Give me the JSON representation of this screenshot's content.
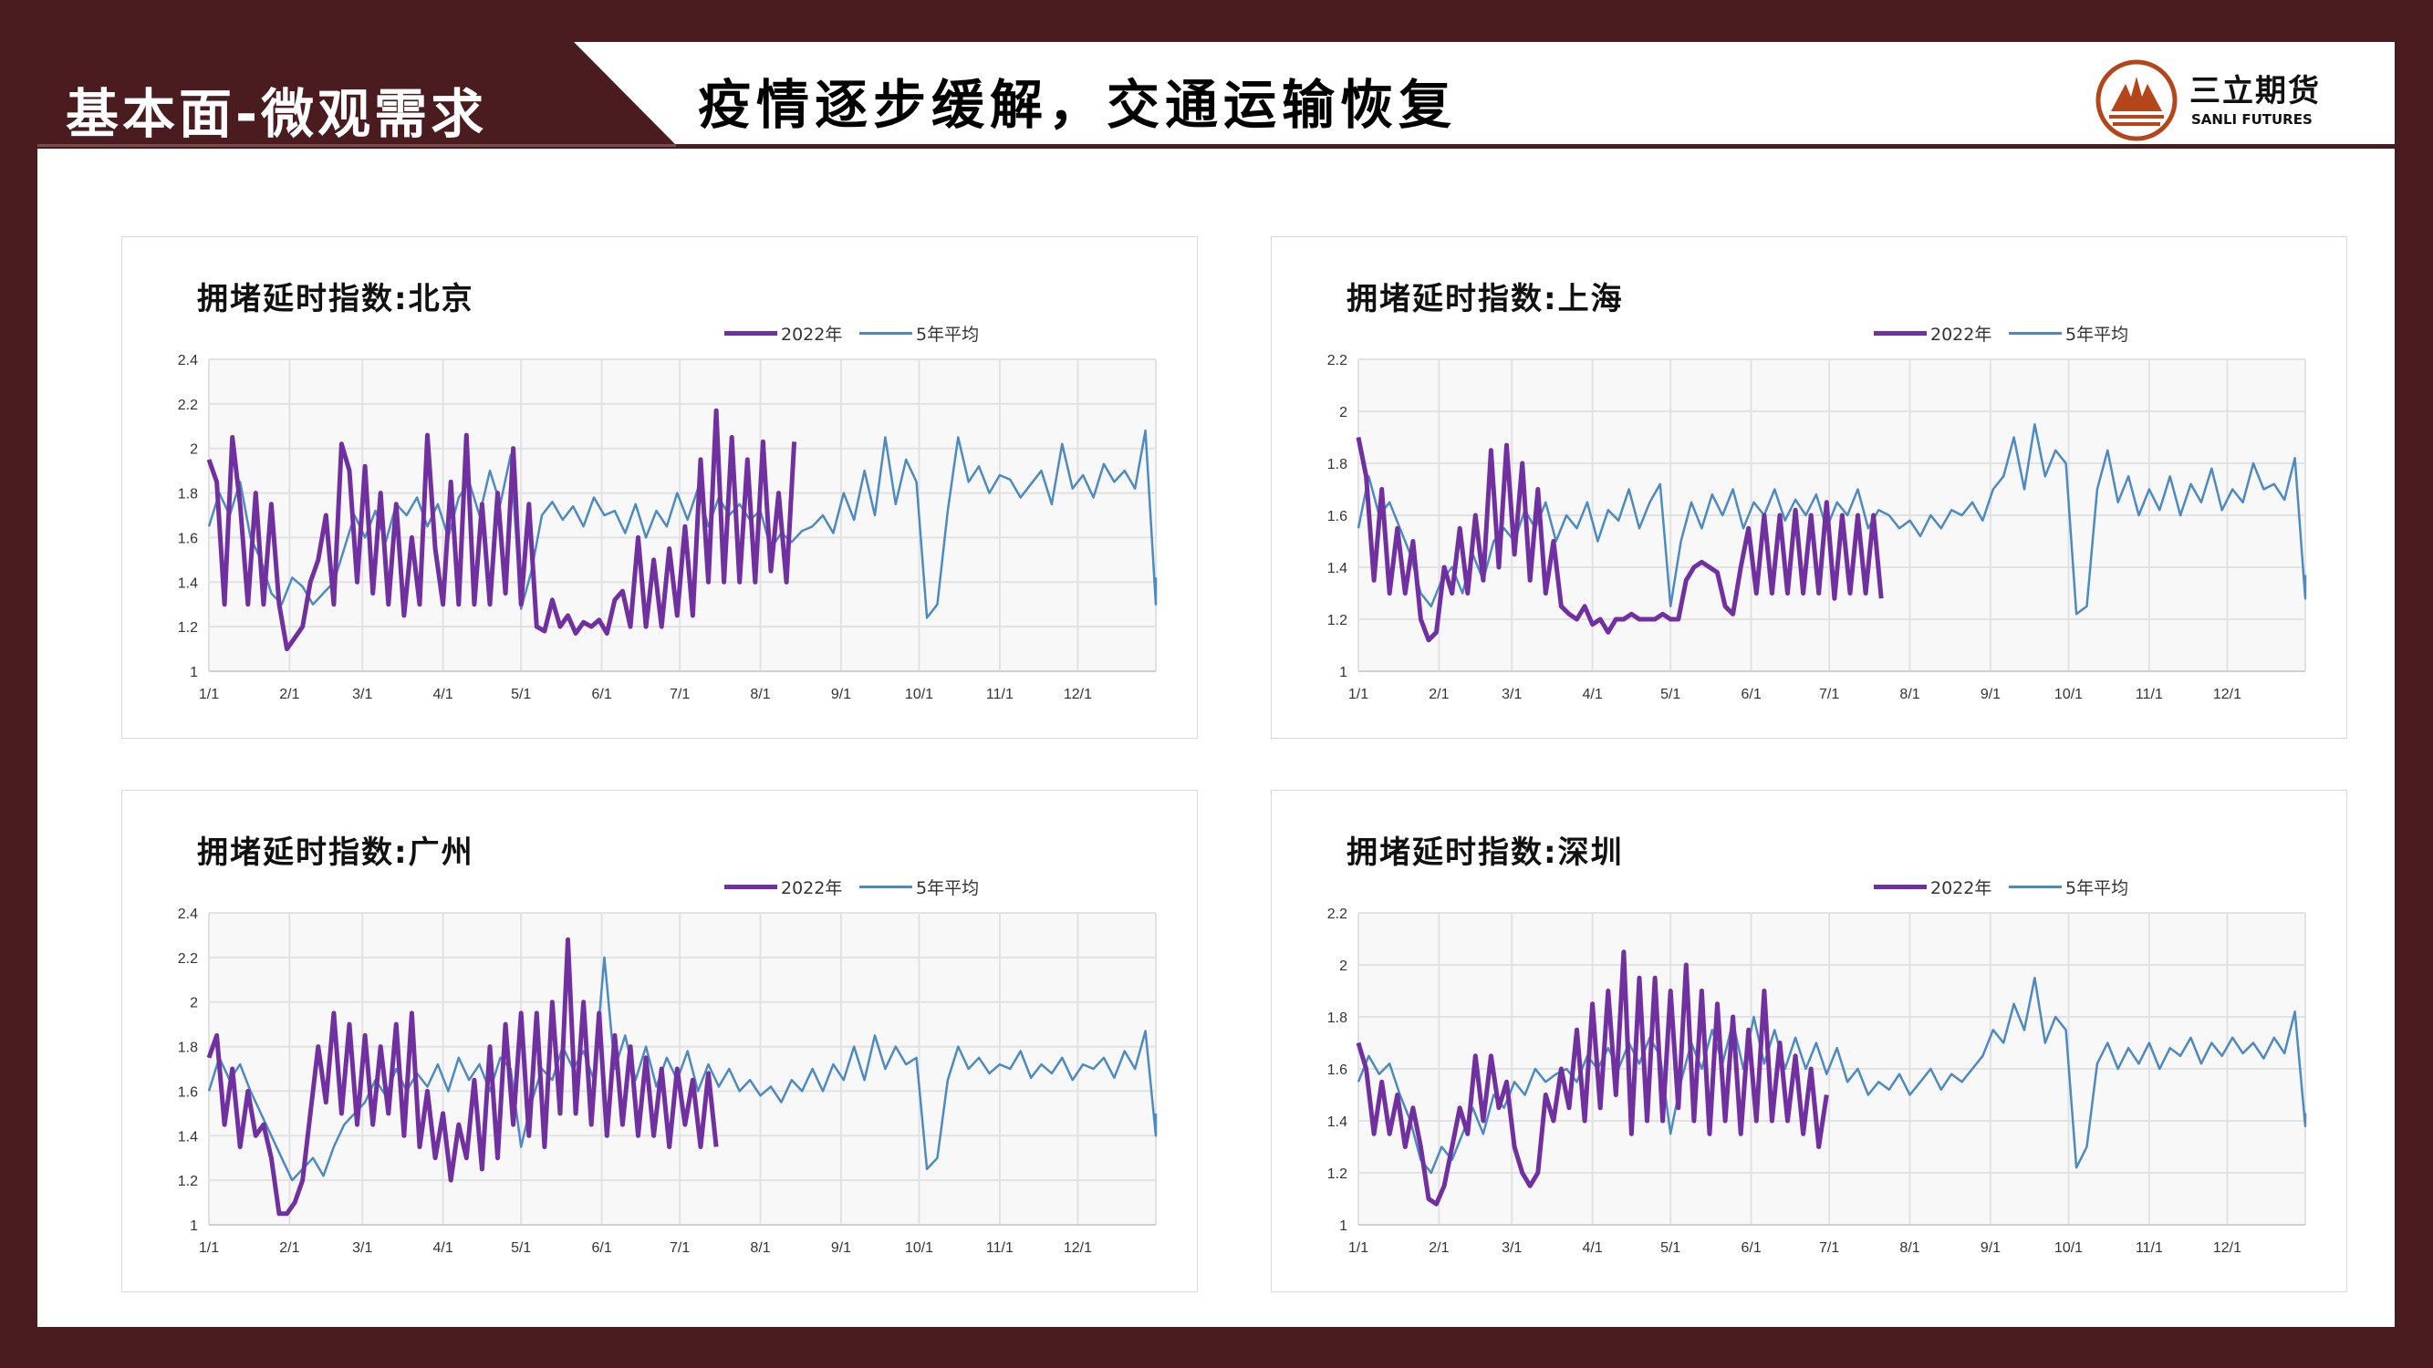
{
  "header": {
    "section": "基本面-微观需求",
    "title": "疫情逐步缓解，交通运输恢复",
    "logo_cn": "三立期货",
    "logo_en": "SANLI FUTURES"
  },
  "colors": {
    "series_2022": "#7030a0",
    "series_5yr": "#4e8ac2",
    "frame": "#4a1c1f",
    "logo": "#b5451b"
  },
  "chart_data": [
    {
      "type": "line",
      "title": "拥堵延时指数:北京",
      "ylim": [
        1,
        2.4
      ],
      "yticks": [
        "1",
        "1.2",
        "1.4",
        "1.6",
        "1.8",
        "2",
        "2.2",
        "2.4"
      ],
      "xticks": [
        "1/1",
        "2/1",
        "3/1",
        "4/1",
        "5/1",
        "6/1",
        "7/1",
        "8/1",
        "9/1",
        "10/1",
        "11/1",
        "12/1"
      ],
      "legend": [
        "2022年",
        "5年平均"
      ],
      "step_days_2022": 3,
      "step_days_5yr": 4,
      "series": [
        {
          "name": "2022年",
          "values": [
            1.95,
            1.85,
            1.3,
            2.05,
            1.75,
            1.3,
            1.8,
            1.3,
            1.75,
            1.3,
            1.1,
            1.15,
            1.2,
            1.4,
            1.5,
            1.7,
            1.3,
            2.02,
            1.9,
            1.4,
            1.92,
            1.35,
            1.8,
            1.3,
            1.75,
            1.25,
            1.6,
            1.3,
            2.06,
            1.55,
            1.3,
            1.85,
            1.3,
            2.06,
            1.3,
            1.75,
            1.3,
            1.8,
            1.35,
            2.0,
            1.3,
            1.75,
            1.2,
            1.18,
            1.32,
            1.2,
            1.25,
            1.17,
            1.22,
            1.2,
            1.23,
            1.17,
            1.32,
            1.36,
            1.2,
            1.6,
            1.2,
            1.5,
            1.2,
            1.55,
            1.25,
            1.65,
            1.25,
            1.95,
            1.4,
            2.17,
            1.4,
            2.05,
            1.4,
            1.95,
            1.4,
            2.03,
            1.45,
            1.8,
            1.4,
            2.03
          ]
        },
        {
          "name": "5年平均",
          "values": [
            1.65,
            1.8,
            1.7,
            1.85,
            1.6,
            1.5,
            1.35,
            1.3,
            1.42,
            1.38,
            1.3,
            1.35,
            1.4,
            1.55,
            1.7,
            1.6,
            1.72,
            1.58,
            1.75,
            1.7,
            1.78,
            1.65,
            1.75,
            1.6,
            1.78,
            1.85,
            1.7,
            1.9,
            1.75,
            1.97,
            1.28,
            1.45,
            1.7,
            1.76,
            1.68,
            1.74,
            1.65,
            1.78,
            1.7,
            1.72,
            1.62,
            1.75,
            1.6,
            1.72,
            1.65,
            1.8,
            1.68,
            1.82,
            1.65,
            1.78,
            1.7,
            1.75,
            1.68,
            1.72,
            1.55,
            1.62,
            1.58,
            1.63,
            1.65,
            1.7,
            1.62,
            1.8,
            1.68,
            1.9,
            1.7,
            2.05,
            1.75,
            1.95,
            1.85,
            1.24,
            1.3,
            1.72,
            2.05,
            1.85,
            1.92,
            1.8,
            1.88,
            1.86,
            1.78,
            1.84,
            1.9,
            1.75,
            2.02,
            1.82,
            1.88,
            1.78,
            1.93,
            1.85,
            1.9,
            1.82,
            2.08,
            1.3,
            1.42
          ]
        }
      ]
    },
    {
      "type": "line",
      "title": "拥堵延时指数:上海",
      "ylim": [
        1,
        2.2
      ],
      "yticks": [
        "1",
        "1.2",
        "1.4",
        "1.6",
        "1.8",
        "2",
        "2.2"
      ],
      "xticks": [
        "1/1",
        "2/1",
        "3/1",
        "4/1",
        "5/1",
        "6/1",
        "7/1",
        "8/1",
        "9/1",
        "10/1",
        "11/1",
        "12/1"
      ],
      "legend": [
        "2022年",
        "5年平均"
      ],
      "step_days_2022": 3,
      "step_days_5yr": 4,
      "series": [
        {
          "name": "2022年",
          "values": [
            1.9,
            1.75,
            1.35,
            1.7,
            1.3,
            1.55,
            1.3,
            1.5,
            1.2,
            1.12,
            1.15,
            1.4,
            1.3,
            1.55,
            1.3,
            1.6,
            1.35,
            1.85,
            1.4,
            1.87,
            1.45,
            1.8,
            1.35,
            1.7,
            1.3,
            1.5,
            1.25,
            1.22,
            1.2,
            1.25,
            1.18,
            1.2,
            1.15,
            1.2,
            1.2,
            1.22,
            1.2,
            1.2,
            1.2,
            1.22,
            1.2,
            1.2,
            1.35,
            1.4,
            1.42,
            1.4,
            1.38,
            1.25,
            1.22,
            1.4,
            1.55,
            1.3,
            1.6,
            1.3,
            1.6,
            1.3,
            1.62,
            1.3,
            1.6,
            1.3,
            1.65,
            1.28,
            1.6,
            1.3,
            1.6,
            1.3,
            1.6,
            1.28
          ]
        },
        {
          "name": "5年平均",
          "values": [
            1.55,
            1.75,
            1.6,
            1.65,
            1.55,
            1.45,
            1.3,
            1.25,
            1.35,
            1.4,
            1.3,
            1.45,
            1.35,
            1.5,
            1.55,
            1.5,
            1.62,
            1.55,
            1.65,
            1.5,
            1.6,
            1.55,
            1.65,
            1.5,
            1.62,
            1.58,
            1.7,
            1.55,
            1.65,
            1.72,
            1.25,
            1.5,
            1.65,
            1.55,
            1.68,
            1.6,
            1.7,
            1.55,
            1.65,
            1.6,
            1.7,
            1.58,
            1.66,
            1.6,
            1.68,
            1.55,
            1.65,
            1.6,
            1.7,
            1.55,
            1.62,
            1.6,
            1.55,
            1.58,
            1.52,
            1.6,
            1.55,
            1.62,
            1.6,
            1.65,
            1.58,
            1.7,
            1.75,
            1.9,
            1.7,
            1.95,
            1.75,
            1.85,
            1.8,
            1.22,
            1.25,
            1.7,
            1.85,
            1.65,
            1.75,
            1.6,
            1.7,
            1.62,
            1.75,
            1.6,
            1.72,
            1.65,
            1.78,
            1.62,
            1.7,
            1.65,
            1.8,
            1.7,
            1.72,
            1.66,
            1.82,
            1.28,
            1.37
          ]
        }
      ]
    },
    {
      "type": "line",
      "title": "拥堵延时指数:广州",
      "ylim": [
        1,
        2.4
      ],
      "yticks": [
        "1",
        "1.2",
        "1.4",
        "1.6",
        "1.8",
        "2",
        "2.2",
        "2.4"
      ],
      "xticks": [
        "1/1",
        "2/1",
        "3/1",
        "4/1",
        "5/1",
        "6/1",
        "7/1",
        "8/1",
        "9/1",
        "10/1",
        "11/1",
        "12/1"
      ],
      "legend": [
        "2022年",
        "5年平均"
      ],
      "step_days_2022": 3,
      "step_days_5yr": 4,
      "series": [
        {
          "name": "2022年",
          "values": [
            1.75,
            1.85,
            1.45,
            1.7,
            1.35,
            1.6,
            1.4,
            1.45,
            1.3,
            1.05,
            1.05,
            1.1,
            1.2,
            1.5,
            1.8,
            1.55,
            1.95,
            1.5,
            1.9,
            1.45,
            1.85,
            1.45,
            1.8,
            1.5,
            1.9,
            1.4,
            1.95,
            1.35,
            1.6,
            1.3,
            1.5,
            1.2,
            1.45,
            1.3,
            1.65,
            1.25,
            1.8,
            1.3,
            1.9,
            1.45,
            1.95,
            1.4,
            1.95,
            1.35,
            2.0,
            1.5,
            2.28,
            1.5,
            2.0,
            1.45,
            1.95,
            1.4,
            1.85,
            1.45,
            1.8,
            1.4,
            1.75,
            1.4,
            1.7,
            1.35,
            1.7,
            1.45,
            1.65,
            1.35,
            1.68,
            1.35
          ]
        },
        {
          "name": "5年平均",
          "values": [
            1.6,
            1.75,
            1.65,
            1.72,
            1.6,
            1.5,
            1.4,
            1.3,
            1.2,
            1.25,
            1.3,
            1.22,
            1.35,
            1.45,
            1.5,
            1.55,
            1.65,
            1.58,
            1.7,
            1.6,
            1.68,
            1.62,
            1.72,
            1.6,
            1.75,
            1.65,
            1.72,
            1.6,
            1.75,
            1.7,
            1.35,
            1.55,
            1.7,
            1.65,
            1.8,
            1.7,
            1.78,
            1.65,
            2.2,
            1.7,
            1.85,
            1.65,
            1.8,
            1.62,
            1.75,
            1.65,
            1.78,
            1.6,
            1.72,
            1.62,
            1.7,
            1.6,
            1.65,
            1.58,
            1.62,
            1.55,
            1.65,
            1.6,
            1.7,
            1.6,
            1.72,
            1.65,
            1.8,
            1.65,
            1.85,
            1.7,
            1.8,
            1.72,
            1.75,
            1.25,
            1.3,
            1.65,
            1.8,
            1.7,
            1.75,
            1.68,
            1.72,
            1.7,
            1.78,
            1.66,
            1.72,
            1.68,
            1.75,
            1.65,
            1.72,
            1.7,
            1.75,
            1.66,
            1.78,
            1.7,
            1.87,
            1.4,
            1.5
          ]
        }
      ]
    },
    {
      "type": "line",
      "title": "拥堵延时指数:深圳",
      "ylim": [
        1,
        2.2
      ],
      "yticks": [
        "1",
        "1.2",
        "1.4",
        "1.6",
        "1.8",
        "2",
        "2.2"
      ],
      "xticks": [
        "1/1",
        "2/1",
        "3/1",
        "4/1",
        "5/1",
        "6/1",
        "7/1",
        "8/1",
        "9/1",
        "10/1",
        "11/1",
        "12/1"
      ],
      "legend": [
        "2022年",
        "5年平均"
      ],
      "step_days_2022": 3,
      "step_days_5yr": 4,
      "series": [
        {
          "name": "2022年",
          "values": [
            1.7,
            1.6,
            1.35,
            1.55,
            1.35,
            1.5,
            1.3,
            1.45,
            1.3,
            1.1,
            1.08,
            1.15,
            1.3,
            1.45,
            1.35,
            1.65,
            1.4,
            1.65,
            1.45,
            1.55,
            1.3,
            1.2,
            1.15,
            1.2,
            1.5,
            1.4,
            1.6,
            1.45,
            1.75,
            1.4,
            1.85,
            1.45,
            1.9,
            1.5,
            2.05,
            1.35,
            1.95,
            1.4,
            1.95,
            1.4,
            1.9,
            1.45,
            2.0,
            1.4,
            1.9,
            1.35,
            1.85,
            1.4,
            1.8,
            1.35,
            1.75,
            1.4,
            1.9,
            1.4,
            1.7,
            1.4,
            1.65,
            1.35,
            1.6,
            1.3,
            1.5
          ]
        },
        {
          "name": "5年平均",
          "values": [
            1.55,
            1.65,
            1.58,
            1.62,
            1.5,
            1.4,
            1.25,
            1.2,
            1.3,
            1.25,
            1.35,
            1.45,
            1.35,
            1.5,
            1.45,
            1.55,
            1.5,
            1.6,
            1.55,
            1.58,
            1.6,
            1.55,
            1.65,
            1.6,
            1.68,
            1.6,
            1.7,
            1.62,
            1.72,
            1.65,
            1.35,
            1.55,
            1.7,
            1.6,
            1.75,
            1.62,
            1.78,
            1.6,
            1.8,
            1.62,
            1.75,
            1.6,
            1.72,
            1.6,
            1.7,
            1.58,
            1.68,
            1.55,
            1.6,
            1.5,
            1.55,
            1.52,
            1.58,
            1.5,
            1.55,
            1.6,
            1.52,
            1.58,
            1.55,
            1.6,
            1.65,
            1.75,
            1.7,
            1.85,
            1.75,
            1.95,
            1.7,
            1.8,
            1.75,
            1.22,
            1.3,
            1.62,
            1.7,
            1.6,
            1.68,
            1.62,
            1.7,
            1.6,
            1.68,
            1.65,
            1.72,
            1.62,
            1.7,
            1.65,
            1.72,
            1.66,
            1.7,
            1.64,
            1.72,
            1.66,
            1.82,
            1.38,
            1.43
          ]
        }
      ]
    }
  ]
}
